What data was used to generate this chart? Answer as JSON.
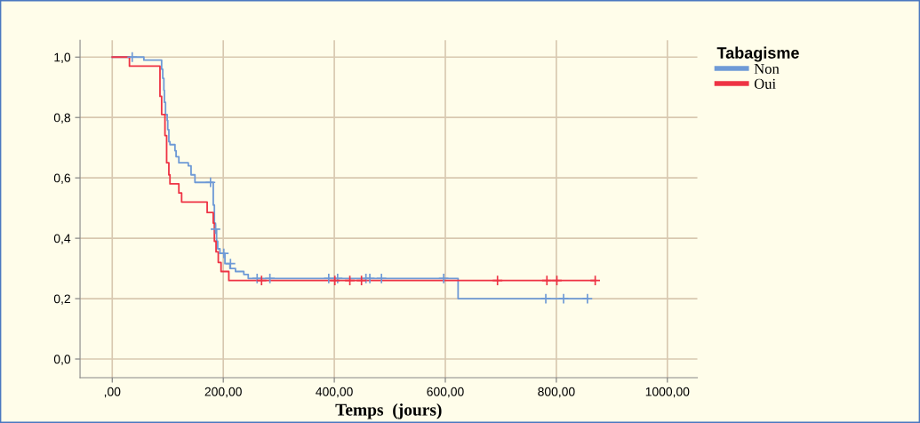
{
  "chart_data": {
    "type": "step",
    "xlabel": "Temps  (jours)",
    "legend_title": "Tabagisme",
    "legend": "top right",
    "grid": true,
    "xlim": [
      -58,
      1054
    ],
    "ylim": [
      -0.062,
      1.056
    ],
    "xticks": [
      {
        "value": 0,
        "label": ",00"
      },
      {
        "value": 200,
        "label": "200,00"
      },
      {
        "value": 400,
        "label": "400,00"
      },
      {
        "value": 600,
        "label": "600,00"
      },
      {
        "value": 800,
        "label": "800,00"
      },
      {
        "value": 1000,
        "label": "1000,00"
      }
    ],
    "yticks": [
      {
        "value": 0,
        "label": "0,0"
      },
      {
        "value": 0.2,
        "label": "0,2"
      },
      {
        "value": 0.4,
        "label": "0,4"
      },
      {
        "value": 0.6,
        "label": "0,6"
      },
      {
        "value": 0.8,
        "label": "0,8"
      },
      {
        "value": 1.0,
        "label": "1,0"
      }
    ],
    "series": [
      {
        "name": "Non",
        "color": "#6f9ad6",
        "x": [
          0,
          57,
          89,
          91,
          93,
          94,
          96,
          99,
          100,
          102,
          104,
          113,
          115,
          120,
          137,
          142,
          149,
          182,
          184,
          186,
          188,
          190,
          194,
          203,
          212,
          222,
          237,
          245,
          623,
          857
        ],
        "values": [
          1,
          0.99,
          0.96,
          0.93,
          0.89,
          0.85,
          0.81,
          0.79,
          0.76,
          0.72,
          0.71,
          0.69,
          0.67,
          0.65,
          0.64,
          0.61,
          0.585,
          0.51,
          0.45,
          0.43,
          0.39,
          0.365,
          0.35,
          0.316,
          0.3,
          0.29,
          0.28,
          0.267,
          0.2,
          0.2
        ]
      },
      {
        "name": "Oui",
        "color": "#ee3344",
        "x": [
          0,
          31,
          86,
          89,
          95,
          98,
          102,
          104,
          120,
          125,
          171,
          182,
          184,
          187,
          191,
          196,
          210,
          870
        ],
        "values": [
          1,
          0.97,
          0.87,
          0.81,
          0.74,
          0.65,
          0.61,
          0.58,
          0.55,
          0.52,
          0.485,
          0.45,
          0.39,
          0.355,
          0.32,
          0.29,
          0.26,
          0.26
        ]
      },
      {
        "type": "scatter",
        "marker": "cross",
        "color": "#6f9ad6",
        "x": [
          36,
          177,
          186,
          201,
          213,
          261,
          284,
          390,
          406,
          457,
          464,
          485,
          597,
          781,
          813,
          856
        ],
        "values": [
          1,
          0.585,
          0.43,
          0.35,
          0.316,
          0.267,
          0.267,
          0.267,
          0.267,
          0.267,
          0.267,
          0.267,
          0.267,
          0.2,
          0.2,
          0.2
        ]
      },
      {
        "type": "scatter",
        "marker": "cross",
        "color": "#ee3344",
        "x": [
          269,
          401,
          428,
          449,
          694,
          783,
          801,
          870
        ],
        "values": [
          0.26,
          0.26,
          0.26,
          0.26,
          0.26,
          0.26,
          0.26,
          0.26
        ]
      }
    ]
  }
}
